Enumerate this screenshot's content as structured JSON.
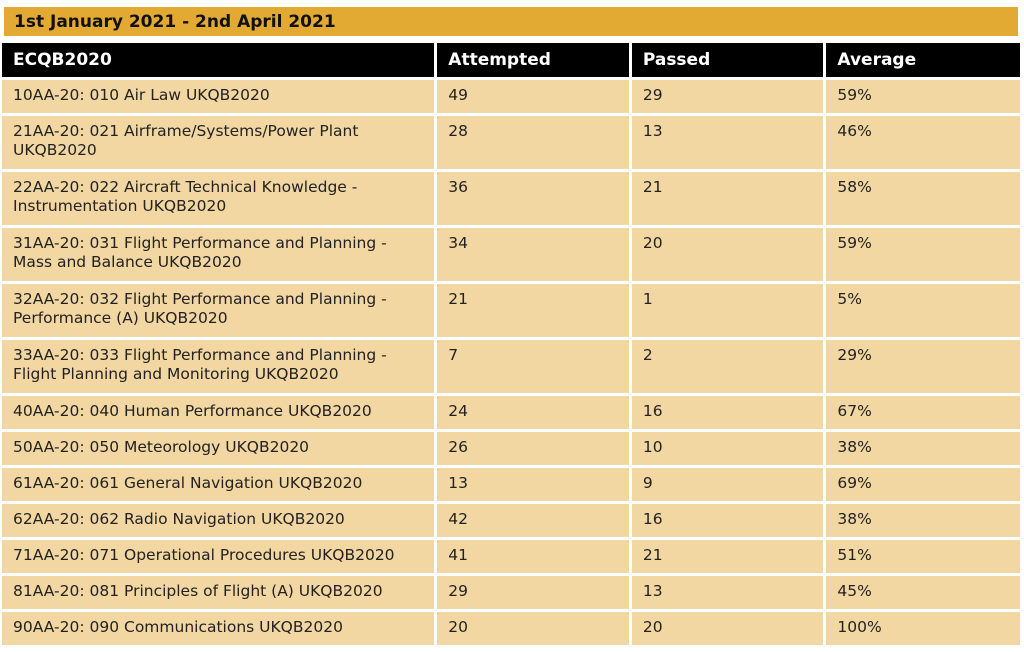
{
  "banner": "1st January 2021 - 2nd April 2021",
  "headers": {
    "name": "ECQB2020",
    "attempted": "Attempted",
    "passed": "Passed",
    "average": "Average"
  },
  "rows": [
    {
      "name": "10AA-20: 010 Air Law UKQB2020",
      "attempted": "49",
      "passed": "29",
      "average": "59%"
    },
    {
      "name": "21AA-20: 021 Airframe/Systems/Power Plant UKQB2020",
      "attempted": "28",
      "passed": "13",
      "average": "46%"
    },
    {
      "name": "22AA-20: 022 Aircraft Technical Knowledge - Instrumentation UKQB2020",
      "attempted": "36",
      "passed": "21",
      "average": "58%"
    },
    {
      "name": "31AA-20: 031 Flight Performance and Planning - Mass and Balance UKQB2020",
      "attempted": "34",
      "passed": "20",
      "average": "59%"
    },
    {
      "name": "32AA-20: 032 Flight Performance and Planning - Performance (A) UKQB2020",
      "attempted": "21",
      "passed": "1",
      "average": "5%"
    },
    {
      "name": "33AA-20: 033 Flight Performance and Planning - Flight Planning and Monitoring UKQB2020",
      "attempted": "7",
      "passed": "2",
      "average": "29%"
    },
    {
      "name": "40AA-20: 040 Human Performance UKQB2020",
      "attempted": "24",
      "passed": "16",
      "average": "67%"
    },
    {
      "name": "50AA-20: 050 Meteorology UKQB2020",
      "attempted": "26",
      "passed": "10",
      "average": "38%"
    },
    {
      "name": "61AA-20: 061 General Navigation UKQB2020",
      "attempted": "13",
      "passed": "9",
      "average": "69%"
    },
    {
      "name": "62AA-20: 062 Radio Navigation UKQB2020",
      "attempted": "42",
      "passed": "16",
      "average": "38%"
    },
    {
      "name": "71AA-20: 071 Operational Procedures UKQB2020",
      "attempted": "41",
      "passed": "21",
      "average": "51%"
    },
    {
      "name": "81AA-20: 081 Principles of Flight (A) UKQB2020",
      "attempted": "29",
      "passed": "13",
      "average": "45%"
    },
    {
      "name": "90AA-20: 090 Communications UKQB2020",
      "attempted": "20",
      "passed": "20",
      "average": "100%"
    }
  ]
}
